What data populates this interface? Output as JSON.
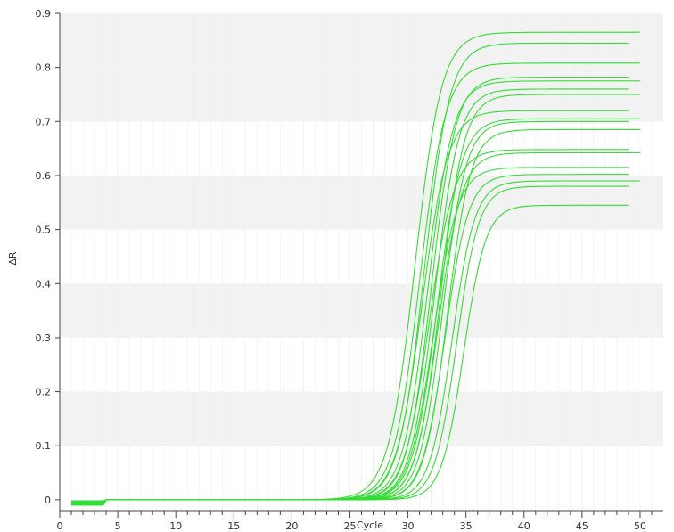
{
  "chart_data": {
    "type": "line",
    "xlabel": "Cycle",
    "ylabel": "ΔR",
    "xlim": [
      0,
      52
    ],
    "ylim": [
      -0.02,
      0.9
    ],
    "x_ticks": [
      0,
      5,
      10,
      15,
      20,
      25,
      30,
      35,
      40,
      45,
      50
    ],
    "y_ticks": [
      0,
      0.1,
      0.2,
      0.3,
      0.4,
      0.5,
      0.6,
      0.7,
      0.8,
      0.9
    ],
    "y_tick_labels": [
      "0",
      "0.1",
      "0.2",
      "0.3",
      "0.4",
      "0.5",
      "0.6",
      "0.7",
      "0.8",
      "0.9"
    ],
    "grid": "alternating horizontal bands",
    "legend": "none",
    "line_color": "#33dd33",
    "band_color": "#f2f2f2",
    "cycles": [
      1,
      50
    ],
    "curve_model": "sigmoid amplification curves",
    "series": [
      {
        "plateau": 0.865,
        "midpoint_cycle": 30.6,
        "slope": 1.15,
        "last_cycle": 50
      },
      {
        "plateau": 0.845,
        "midpoint_cycle": 31.4,
        "slope": 1.1,
        "last_cycle": 49
      },
      {
        "plateau": 0.808,
        "midpoint_cycle": 31.0,
        "slope": 1.12,
        "last_cycle": 50
      },
      {
        "plateau": 0.782,
        "midpoint_cycle": 32.0,
        "slope": 1.05,
        "last_cycle": 49
      },
      {
        "plateau": 0.775,
        "midpoint_cycle": 31.7,
        "slope": 1.08,
        "last_cycle": 50
      },
      {
        "plateau": 0.76,
        "midpoint_cycle": 32.3,
        "slope": 1.05,
        "last_cycle": 49
      },
      {
        "plateau": 0.75,
        "midpoint_cycle": 32.8,
        "slope": 1.02,
        "last_cycle": 50
      },
      {
        "plateau": 0.72,
        "midpoint_cycle": 31.2,
        "slope": 1.12,
        "last_cycle": 49
      },
      {
        "plateau": 0.705,
        "midpoint_cycle": 32.5,
        "slope": 1.05,
        "last_cycle": 50
      },
      {
        "plateau": 0.7,
        "midpoint_cycle": 33.0,
        "slope": 1.0,
        "last_cycle": 49
      },
      {
        "plateau": 0.685,
        "midpoint_cycle": 33.4,
        "slope": 1.0,
        "last_cycle": 50
      },
      {
        "plateau": 0.648,
        "midpoint_cycle": 31.8,
        "slope": 1.08,
        "last_cycle": 49
      },
      {
        "plateau": 0.642,
        "midpoint_cycle": 32.6,
        "slope": 1.02,
        "last_cycle": 50
      },
      {
        "plateau": 0.615,
        "midpoint_cycle": 32.2,
        "slope": 1.05,
        "last_cycle": 49
      },
      {
        "plateau": 0.602,
        "midpoint_cycle": 33.2,
        "slope": 1.0,
        "last_cycle": 49
      },
      {
        "plateau": 0.59,
        "midpoint_cycle": 33.8,
        "slope": 0.98,
        "last_cycle": 50
      },
      {
        "plateau": 0.58,
        "midpoint_cycle": 34.2,
        "slope": 0.95,
        "last_cycle": 49
      },
      {
        "plateau": 0.545,
        "midpoint_cycle": 34.8,
        "slope": 0.95,
        "last_cycle": 49
      }
    ]
  }
}
